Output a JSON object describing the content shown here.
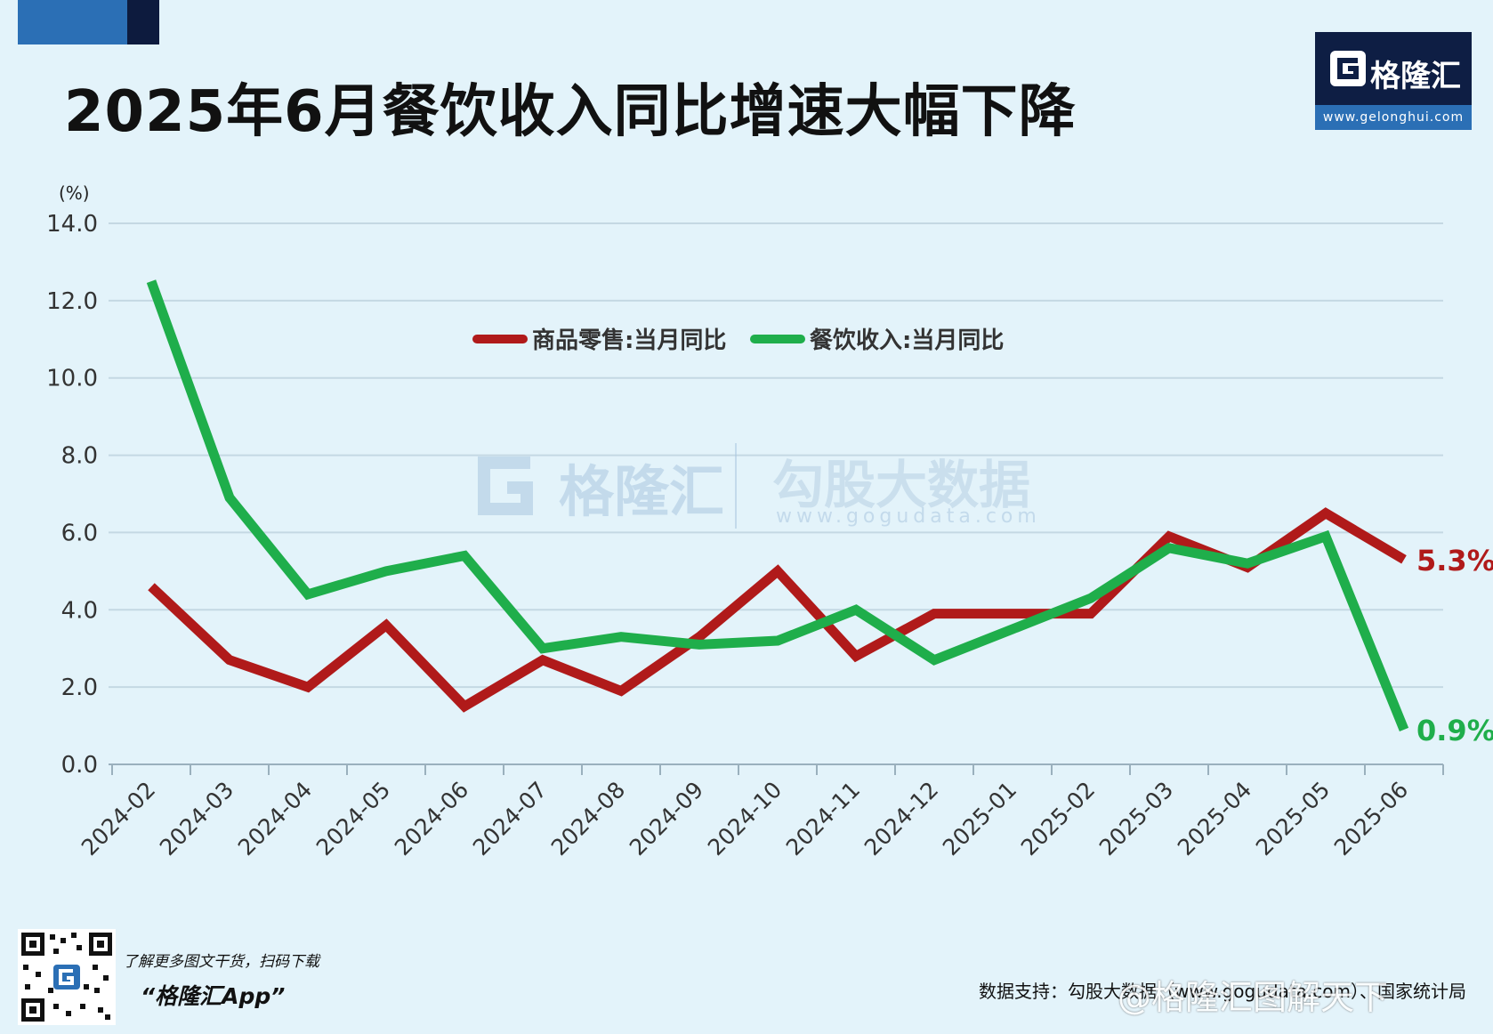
{
  "header": {
    "title": "2025年6月餐饮收入同比增速大幅下降"
  },
  "logo": {
    "brand": "格隆汇",
    "url": "www.gelonghui.com"
  },
  "watermark": {
    "brand": "格隆汇",
    "name": "勾股大数据",
    "url": "www.gogudata.com"
  },
  "footer": {
    "promo_line1": "了解更多图文干货，扫码下载",
    "promo_line2": "“格隆汇App”",
    "source": "数据支持：勾股大数据（www.gogudata.com）、国家统计局",
    "weibo": "@格隆汇图解天下"
  },
  "colors": {
    "background": "#e3f3fa",
    "retail": "#b01a1a",
    "catering": "#1fae4b",
    "grid": "#c4d8e3"
  },
  "chart_data": {
    "type": "line",
    "title": "2025年6月餐饮收入同比增速大幅下降",
    "unit_label": "(%)",
    "ylim": [
      0,
      14
    ],
    "yticks": [
      "0.0",
      "2.0",
      "4.0",
      "6.0",
      "8.0",
      "10.0",
      "12.0",
      "14.0"
    ],
    "grid": true,
    "legend_position": "top-center",
    "categories": [
      "2024-02",
      "2024-03",
      "2024-04",
      "2024-05",
      "2024-06",
      "2024-07",
      "2024-08",
      "2024-09",
      "2024-10",
      "2024-11",
      "2024-12",
      "2025-01",
      "2025-02",
      "2025-03",
      "2025-04",
      "2025-05",
      "2025-06"
    ],
    "series": [
      {
        "name": "商品零售:当月同比",
        "color": "#b01a1a",
        "values": [
          4.6,
          2.7,
          2.0,
          3.6,
          1.5,
          2.7,
          1.9,
          3.3,
          5.0,
          2.8,
          3.9,
          3.9,
          3.9,
          5.9,
          5.1,
          6.5,
          5.3
        ],
        "end_label": "5.3%"
      },
      {
        "name": "餐饮收入:当月同比",
        "color": "#1fae4b",
        "values": [
          12.5,
          6.9,
          4.4,
          5.0,
          5.4,
          3.0,
          3.3,
          3.1,
          3.2,
          4.0,
          2.7,
          3.5,
          4.3,
          5.6,
          5.2,
          5.9,
          0.9
        ],
        "end_label": "0.9%"
      }
    ]
  }
}
